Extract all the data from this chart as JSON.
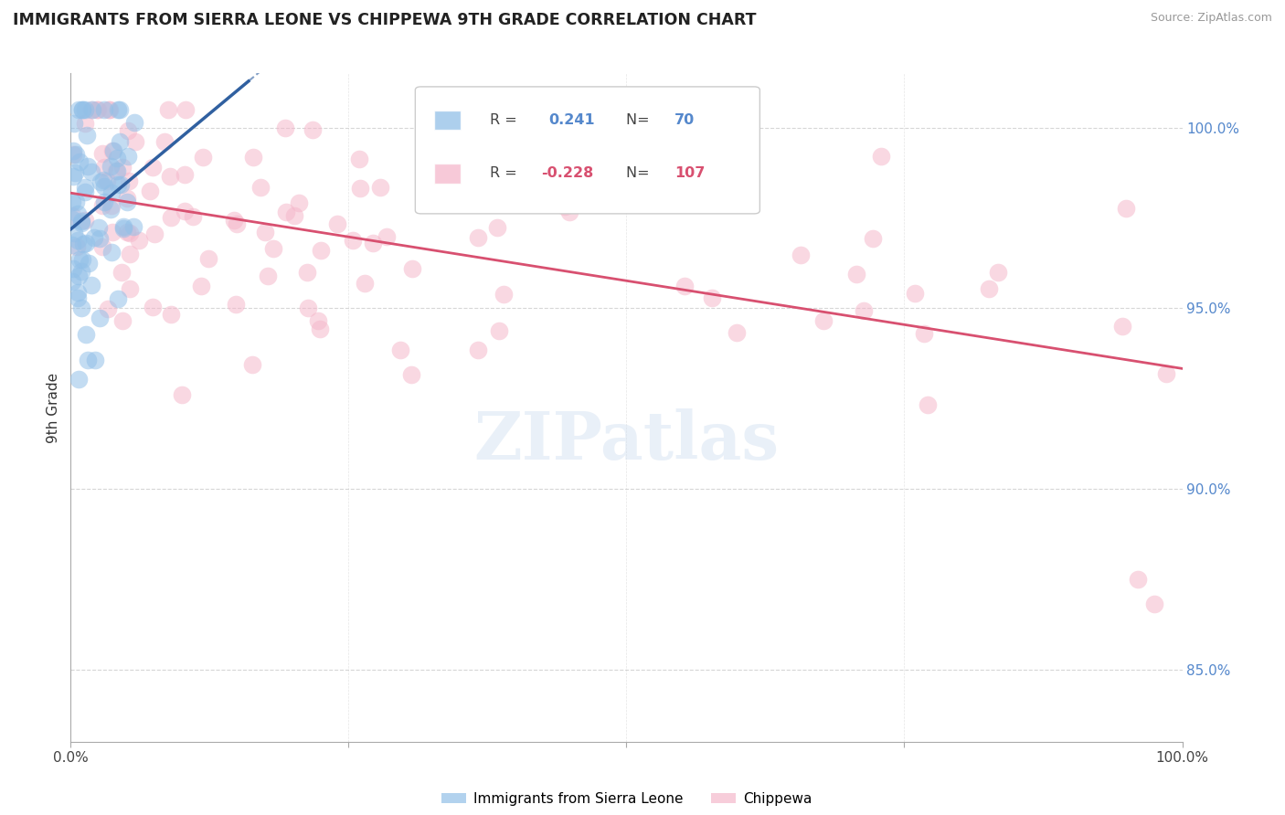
{
  "title": "IMMIGRANTS FROM SIERRA LEONE VS CHIPPEWA 9TH GRADE CORRELATION CHART",
  "source": "Source: ZipAtlas.com",
  "ylabel": "9th Grade",
  "ytick_labels": [
    "85.0%",
    "90.0%",
    "95.0%",
    "100.0%"
  ],
  "ytick_values": [
    0.85,
    0.9,
    0.95,
    1.0
  ],
  "xlim": [
    0.0,
    1.0
  ],
  "ylim": [
    0.83,
    1.015
  ],
  "blue_color": "#92C0E8",
  "pink_color": "#F5B8CB",
  "blue_edge_color": "#92C0E8",
  "pink_edge_color": "#F5B8CB",
  "blue_line_color": "#3060A0",
  "pink_line_color": "#D85070",
  "legend_r1_label": "R = ",
  "legend_r1_val": " 0.241",
  "legend_n1_label": "N= ",
  "legend_n1_val": " 70",
  "legend_r2_label": "R = ",
  "legend_r2_val": "-0.228",
  "legend_n2_label": "N= ",
  "legend_n2_val": "107",
  "blue_label": "Immigrants from Sierra Leone",
  "pink_label": "Chippewa",
  "watermark": "ZIPatlas",
  "grid_color": "#cccccc",
  "tick_color": "#5588CC"
}
